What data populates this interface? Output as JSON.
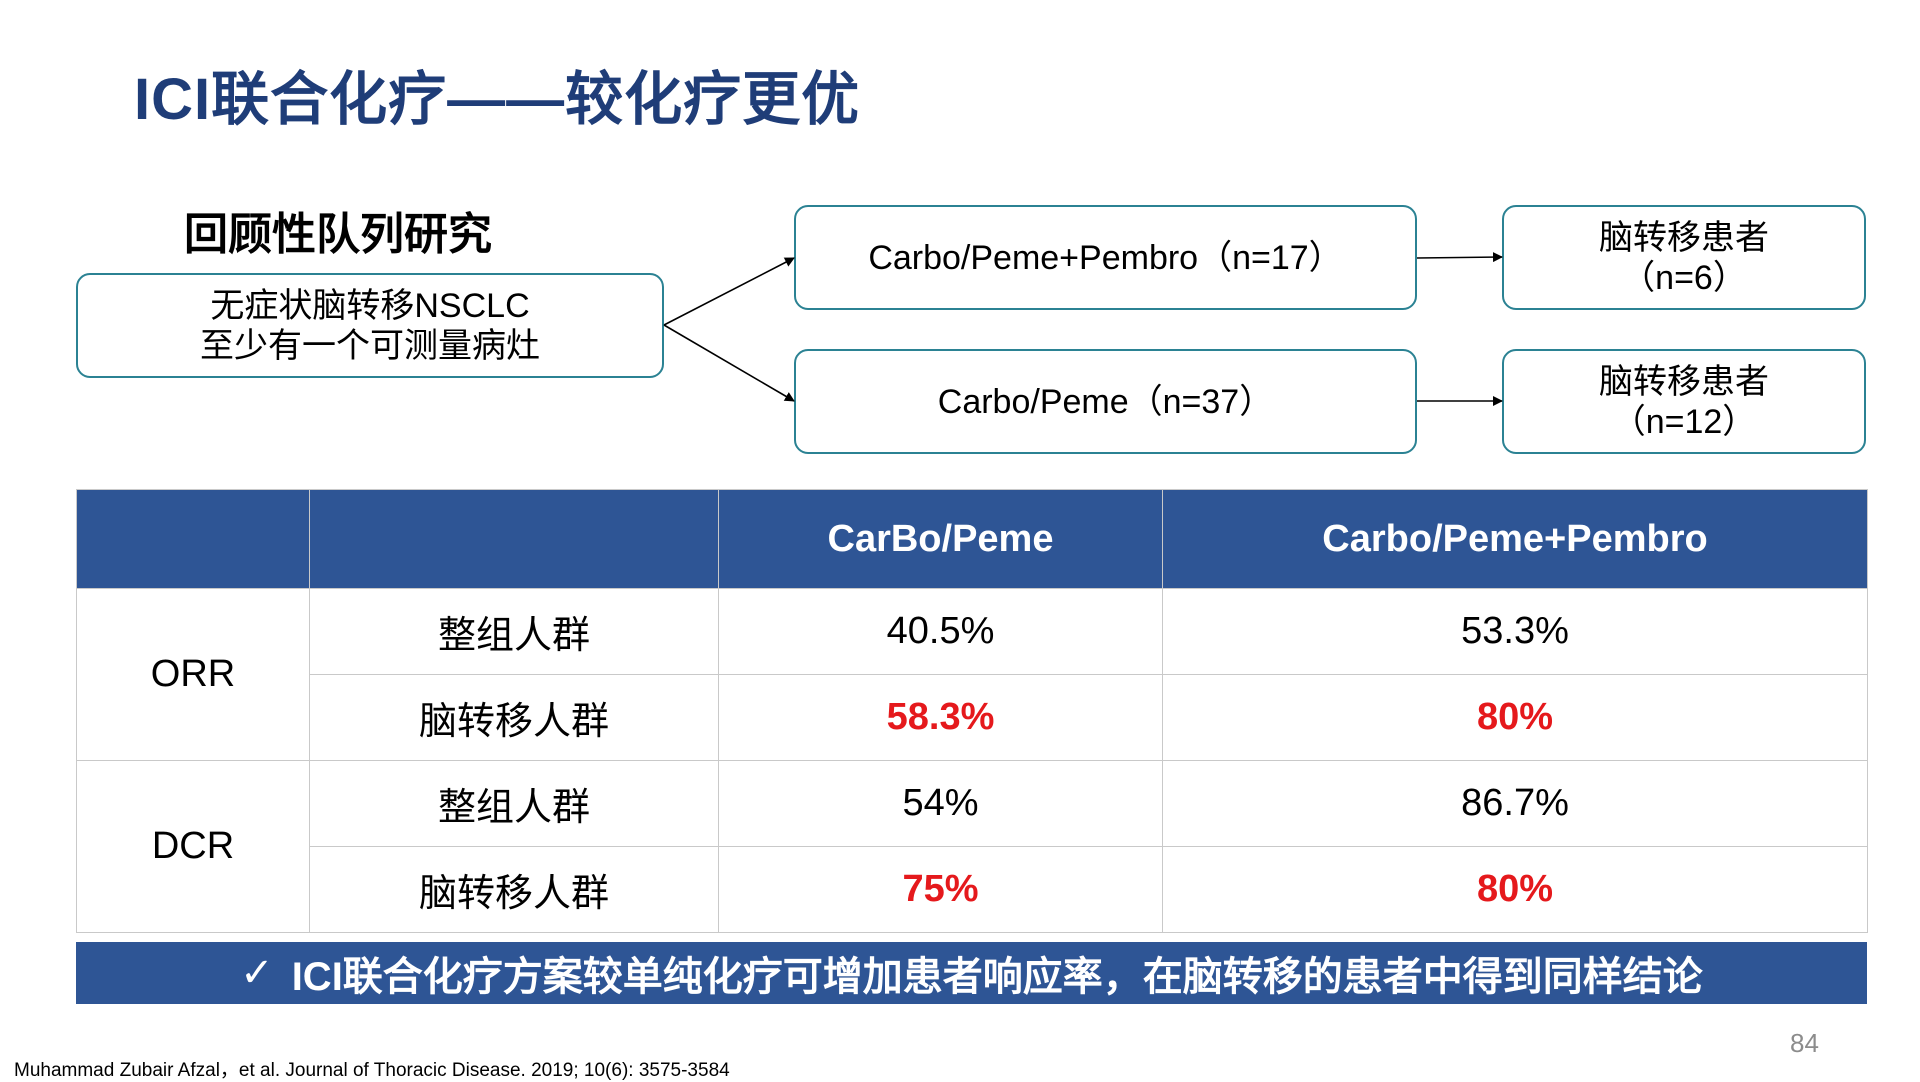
{
  "title": "ICI联合化疗——较化疗更优",
  "flow": {
    "subtitle": "回顾性队列研究",
    "source_line1": "无症状脑转移NSCLC",
    "source_line2": "至少有一个可测量病灶",
    "arm1": "Carbo/Peme+Pembro（n=17）",
    "arm2": "Carbo/Peme（n=37）",
    "brain1_line1": "脑转移患者",
    "brain1_line2": "（n=6）",
    "brain2_line1": "脑转移患者",
    "brain2_line2": "（n=12）"
  },
  "table": {
    "headers": [
      "",
      "",
      "CarBo/Peme",
      "Carbo/Peme+Pembro"
    ],
    "groups": [
      {
        "metric": "ORR",
        "rows": [
          {
            "population": "整组人群",
            "chemo": "40.5%",
            "combo": "53.3%",
            "highlight": false
          },
          {
            "population": "脑转移人群",
            "chemo": "58.3%",
            "combo": "80%",
            "highlight": true
          }
        ]
      },
      {
        "metric": "DCR",
        "rows": [
          {
            "population": "整组人群",
            "chemo": "54%",
            "combo": "86.7%",
            "highlight": false
          },
          {
            "population": "脑转移人群",
            "chemo": "75%",
            "combo": "80%",
            "highlight": true
          }
        ]
      }
    ]
  },
  "conclusion": {
    "check": "✓",
    "text": "ICI联合化疗方案较单纯化疗可增加患者响应率，在脑转移的患者中得到同样结论"
  },
  "page_number": "84",
  "citation": "Muhammad Zubair Afzal，et al. Journal of Thoracic Disease. 2019; 10(6): 3575-3584",
  "colors": {
    "title": "#1f3d78",
    "header_fill": "#2e5595",
    "box_border": "#2b8293",
    "highlight": "#e5191c"
  }
}
